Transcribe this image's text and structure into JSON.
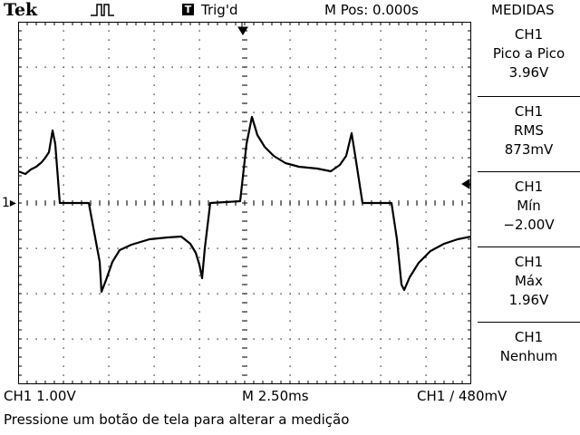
{
  "header": {
    "brand": "Tek",
    "trigger_icon": "pulse-trigger-icon",
    "trigger_box": "T",
    "trigger_status": "Trig'd",
    "horizontal_position": "M Pos: 0.000s",
    "menu_title": "MEDIDAS"
  },
  "measurements": [
    {
      "channel": "CH1",
      "type": "Pico a Pico",
      "value": "3.96V"
    },
    {
      "channel": "CH1",
      "type": "RMS",
      "value": "873mV"
    },
    {
      "channel": "CH1",
      "type": "Mín",
      "value": "−2.00V"
    },
    {
      "channel": "CH1",
      "type": "Máx",
      "value": "1.96V"
    },
    {
      "channel": "CH1",
      "type": "Nenhum",
      "value": ""
    }
  ],
  "footer": {
    "ch1_scale": "CH1  1.00V",
    "timebase": "M 2.50ms",
    "trigger_info": "CH1 ∕ 480mV",
    "message": "Pressione um botão de tela para alterar a medição"
  },
  "channel_marker": "1",
  "colors": {
    "trace": "#000000",
    "grid": "#000000",
    "background": "#ffffff"
  }
}
